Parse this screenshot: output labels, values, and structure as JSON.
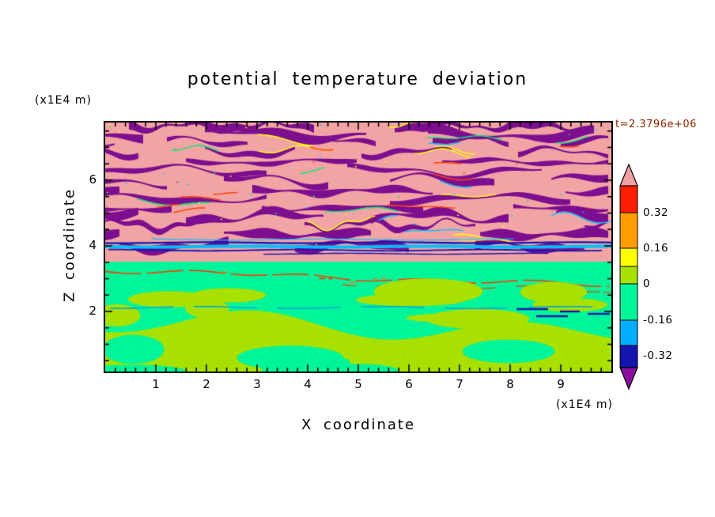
{
  "chart_data": {
    "type": "heatmap",
    "title": "potential temperature deviation",
    "timestamp": "t=2.3796e+06",
    "timestamp_color": "#8B2500",
    "axes": {
      "x": {
        "label": "X coordinate",
        "unit": "(x1E4 m)",
        "ticks": [
          1,
          2,
          3,
          4,
          5,
          6,
          7,
          8,
          9
        ],
        "range": [
          0,
          10
        ]
      },
      "z": {
        "label": "Z coordinate",
        "unit": "(x1E4 m)",
        "ticks": [
          2,
          4,
          6
        ],
        "range": [
          0.2,
          7.8
        ]
      }
    },
    "colorbar": {
      "labels": [
        "0.32",
        "0.16",
        "0",
        "-0.16",
        "-0.32"
      ],
      "tick_values": [
        0.32,
        0.16,
        0,
        -0.16,
        -0.32
      ],
      "colors_top_to_bottom": [
        "#F2A0A6",
        "#FF1E00",
        "#FF9C00",
        "#FFFF00",
        "#A8E000",
        "#00F59B",
        "#00AEFF",
        "#1414AE",
        "#8A0DA0"
      ]
    },
    "field": {
      "upper_base_color": "#F2A4A4",
      "stripe_color": "#7D0E8F",
      "fringe_colors": [
        "#00E87A",
        "#00BFFF",
        "#FFFF00",
        "#FF3C00"
      ],
      "lower_base_color": "#00F59B",
      "blob_color": "#A8E000",
      "streak_navy": "#1414AE",
      "streak_cyan": "#00BFFF",
      "interface_red": "#FF3C00",
      "teal_line_color": "#00A8D8",
      "description": "Turbulent layer of pink background with wavy purple stripes (positive deviation, z above ~3.6), thin navy/cyan shear streaks near z~3.3, a thin red interface line sloping down to the right near z~3, and a spring-green lower layer (near zero deviation) with yellow-green patches toward the bottom"
    }
  }
}
